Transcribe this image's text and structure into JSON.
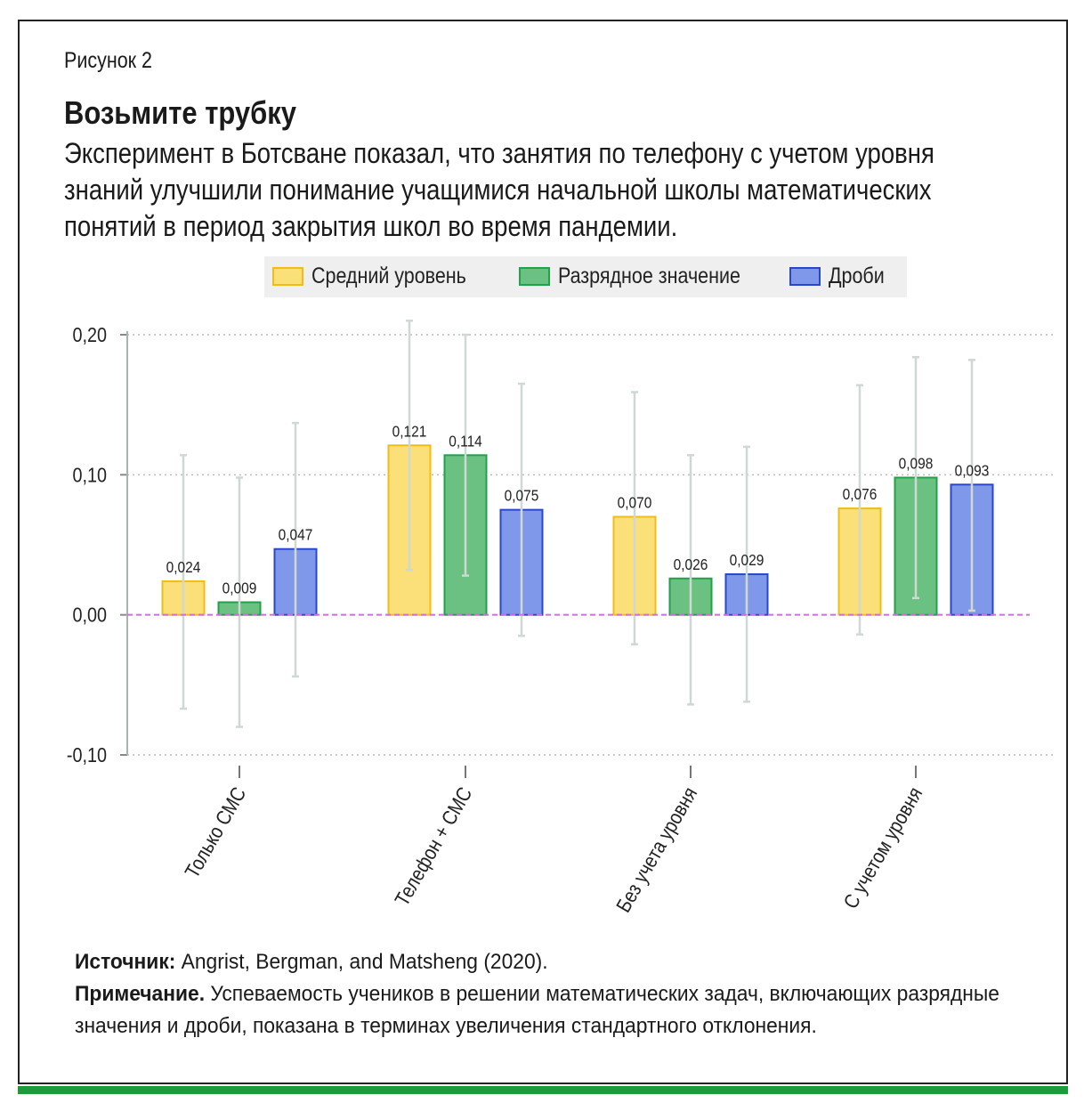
{
  "figure_label": "Рисунок 2",
  "title": "Возьмите трубку",
  "subtitle": "Эксперимент в Ботсване показал, что занятия по телефону с учетом уровня знаний улучшили понимание учащимися начальной школы математических понятий в период закрытия школ во время пандемии.",
  "colors": {
    "series_fill": [
      "#fbe07a",
      "#6bc182",
      "#8098ea"
    ],
    "series_stroke": [
      "#f0bd15",
      "#22a04a",
      "#2a47cc"
    ],
    "zero_line": "#cf6de0",
    "grid": "#bbbbbb",
    "error_bar": "#cfd8d3",
    "frame_accent": "#1f9a3a"
  },
  "chart_data": {
    "type": "bar",
    "categories": [
      "Только СМС",
      "Телефон + СМС",
      "Без учета уровня",
      "С учетом уровня"
    ],
    "series": [
      {
        "name": "Средний уровень",
        "values": [
          0.024,
          0.121,
          0.07,
          0.076
        ],
        "labels": [
          "0,024",
          "0,121",
          "0,070",
          "0,076"
        ],
        "ci_low": [
          -0.067,
          0.032,
          -0.021,
          -0.014
        ],
        "ci_high": [
          0.114,
          0.21,
          0.159,
          0.164
        ]
      },
      {
        "name": "Разрядное значение",
        "values": [
          0.009,
          0.114,
          0.026,
          0.098
        ],
        "labels": [
          "0,009",
          "0,114",
          "0,026",
          "0,098"
        ],
        "ci_low": [
          -0.08,
          0.028,
          -0.064,
          0.012
        ],
        "ci_high": [
          0.098,
          0.2,
          0.114,
          0.184
        ]
      },
      {
        "name": "Дроби",
        "values": [
          0.047,
          0.075,
          0.029,
          0.093
        ],
        "labels": [
          "0,047",
          "0,075",
          "0,029",
          "0,093"
        ],
        "ci_low": [
          -0.044,
          -0.015,
          -0.062,
          0.003
        ],
        "ci_high": [
          0.137,
          0.165,
          0.12,
          0.182
        ]
      }
    ],
    "ylim": [
      -0.1,
      0.2
    ],
    "yticks": [
      0.2,
      0.1,
      0.0,
      -0.1
    ],
    "ytick_labels": [
      "0,20",
      "0,10",
      "0,00",
      "-0,10"
    ],
    "xlabel": "",
    "ylabel": "",
    "grid": true,
    "legend_position": "top-right"
  },
  "footer": {
    "source_label": "Источник:",
    "source_text": " Angrist, Bergman, and Matsheng (2020).",
    "note_label": "Примечание.",
    "note_text": " Успеваемость учеников в решении математических задач, включающих разрядные значения и дроби, показана в терминах увеличения стандартного отклонения."
  }
}
